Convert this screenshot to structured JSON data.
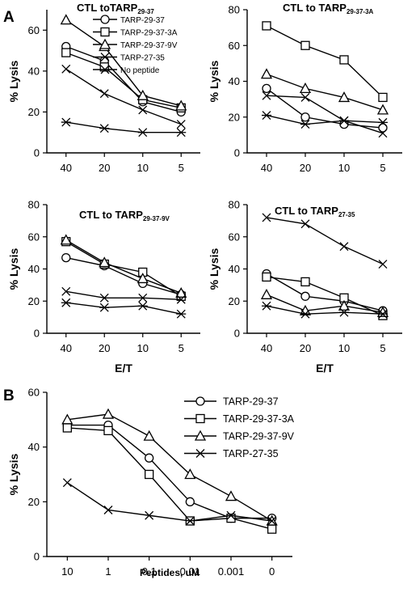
{
  "panel_labels": {
    "a": "A",
    "b": "B"
  },
  "marker_styles": [
    "circle-icon",
    "square-icon",
    "triangle-icon",
    "x-icon",
    "asterisk-icon"
  ],
  "chart_data": [
    {
      "type": "line",
      "panel": "A",
      "title_main": "CTL toTARP",
      "title_sub": "29-37",
      "ylabel": "% Lysis",
      "xlabel": "",
      "categories": [
        "40",
        "20",
        "10",
        "5"
      ],
      "ylim": [
        0,
        70
      ],
      "yticks": [
        0,
        20,
        40,
        60
      ],
      "series": [
        {
          "name": "TARP-29-37",
          "values": [
            52,
            45,
            25,
            20
          ]
        },
        {
          "name": "TARP-29-37-3A",
          "values": [
            49,
            42,
            26,
            22
          ]
        },
        {
          "name": "TARP-29-37-9V",
          "values": [
            65,
            52,
            28,
            23
          ]
        },
        {
          "name": "TARP-27-35",
          "values": [
            41,
            29,
            21,
            14
          ]
        },
        {
          "name": "No peptide",
          "values": [
            15,
            12,
            10,
            10
          ]
        }
      ],
      "legend": "top-right"
    },
    {
      "type": "line",
      "panel": "A",
      "title_main": "CTL to TARP",
      "title_sub": "29-37-3A",
      "ylabel": "% Lysis",
      "xlabel": "",
      "categories": [
        "40",
        "20",
        "10",
        "5"
      ],
      "ylim": [
        0,
        80
      ],
      "yticks": [
        0,
        20,
        40,
        60,
        80
      ],
      "series": [
        {
          "name": "TARP-29-37",
          "values": [
            36,
            20,
            16,
            14
          ]
        },
        {
          "name": "TARP-29-37-3A",
          "values": [
            71,
            60,
            52,
            31
          ]
        },
        {
          "name": "TARP-29-37-9V",
          "values": [
            44,
            36,
            31,
            24
          ]
        },
        {
          "name": "TARP-27-35",
          "values": [
            32,
            31,
            18,
            11
          ]
        },
        {
          "name": "No peptide",
          "values": [
            21,
            16,
            18,
            17
          ]
        }
      ]
    },
    {
      "type": "line",
      "panel": "A",
      "title_main": "CTL to TARP",
      "title_sub": "29-37-9V",
      "ylabel": "% Lysis",
      "xlabel": "E/T",
      "categories": [
        "40",
        "20",
        "10",
        "5"
      ],
      "ylim": [
        0,
        80
      ],
      "yticks": [
        0,
        20,
        40,
        60,
        80
      ],
      "series": [
        {
          "name": "TARP-29-37",
          "values": [
            47,
            42,
            31,
            24
          ]
        },
        {
          "name": "TARP-29-37-3A",
          "values": [
            57,
            43,
            38,
            23
          ]
        },
        {
          "name": "TARP-29-37-9V",
          "values": [
            58,
            44,
            34,
            25
          ]
        },
        {
          "name": "TARP-27-35",
          "values": [
            26,
            22,
            22,
            21
          ]
        },
        {
          "name": "No peptide",
          "values": [
            19,
            16,
            17,
            12
          ]
        }
      ]
    },
    {
      "type": "line",
      "panel": "A",
      "title_main": "CTL to TARP",
      "title_sub": "27-35",
      "ylabel": "% Lysis",
      "xlabel": "E/T",
      "categories": [
        "40",
        "20",
        "10",
        "5"
      ],
      "ylim": [
        0,
        80
      ],
      "yticks": [
        0,
        20,
        40,
        60,
        80
      ],
      "series": [
        {
          "name": "TARP-29-37",
          "values": [
            37,
            23,
            20,
            14
          ]
        },
        {
          "name": "TARP-29-37-3A",
          "values": [
            35,
            32,
            22,
            11
          ]
        },
        {
          "name": "TARP-29-37-9V",
          "values": [
            24,
            14,
            17,
            13
          ]
        },
        {
          "name": "TARP-27-35",
          "values": [
            72,
            68,
            54,
            43
          ]
        },
        {
          "name": "No peptide",
          "values": [
            17,
            12,
            13,
            12
          ]
        }
      ]
    },
    {
      "type": "line",
      "panel": "B",
      "title_main": "",
      "title_sub": "",
      "ylabel": "% Lysis",
      "xlabel": "Peptides, uM",
      "categories": [
        "10",
        "1",
        "0.1",
        "0.01",
        "0.001",
        "0"
      ],
      "ylim": [
        0,
        60
      ],
      "yticks": [
        0,
        20,
        40,
        60
      ],
      "series": [
        {
          "name": "TARP-29-37",
          "values": [
            48,
            48,
            36,
            20,
            14,
            14
          ]
        },
        {
          "name": "TARP-29-37-3A",
          "values": [
            47,
            46,
            30,
            13,
            14,
            10
          ]
        },
        {
          "name": "TARP-29-37-9V",
          "values": [
            50,
            52,
            44,
            30,
            22,
            13
          ]
        },
        {
          "name": "TARP-27-35",
          "values": [
            27,
            17,
            15,
            13,
            15,
            13
          ]
        }
      ],
      "legend": "top-right"
    }
  ]
}
